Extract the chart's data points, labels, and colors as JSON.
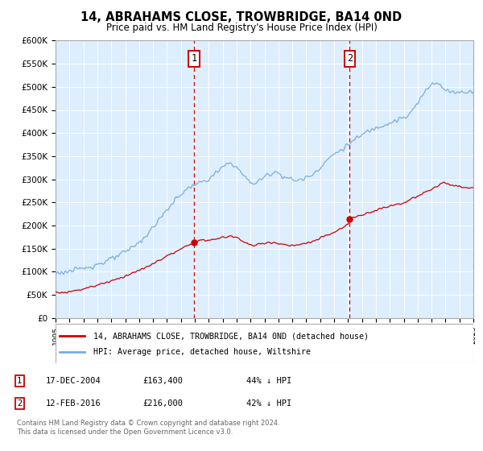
{
  "title": "14, ABRAHAMS CLOSE, TROWBRIDGE, BA14 0ND",
  "subtitle": "Price paid vs. HM Land Registry's House Price Index (HPI)",
  "legend_line1": "14, ABRAHAMS CLOSE, TROWBRIDGE, BA14 0ND (detached house)",
  "legend_line2": "HPI: Average price, detached house, Wiltshire",
  "sale1_label": "1",
  "sale1_date": "17-DEC-2004",
  "sale1_price": "£163,400",
  "sale1_pct": "44% ↓ HPI",
  "sale2_label": "2",
  "sale2_date": "12-FEB-2016",
  "sale2_price": "£216,000",
  "sale2_pct": "42% ↓ HPI",
  "footer1": "Contains HM Land Registry data © Crown copyright and database right 2024.",
  "footer2": "This data is licensed under the Open Government Licence v3.0.",
  "red_color": "#cc0000",
  "blue_color": "#7aaddc",
  "background_color": "#ddeeff",
  "grid_color": "#ffffff",
  "ylim_min": 0,
  "ylim_max": 600000,
  "sale1_x": 2004.96,
  "sale2_x": 2016.12,
  "xmin": 1995,
  "xmax": 2025
}
